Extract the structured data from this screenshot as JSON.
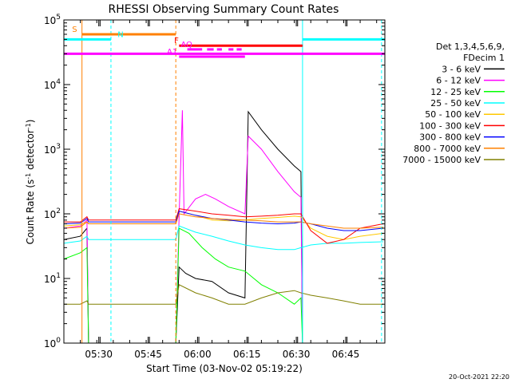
{
  "chart_data": {
    "type": "line",
    "title": "RHESSI Observing Summary Count Rates",
    "xlabel": "Start Time (03-Nov-02 05:19:22)",
    "ylabel": "Count Rate (s⁻¹ detector⁻¹)",
    "ylabel_main": "Count Rate (s",
    "ylabel_sup1": "-1",
    "ylabel_mid": " detector",
    "ylabel_sup2": "-1",
    "ylabel_end": ")",
    "x_ticks": [
      "05:30",
      "05:45",
      "06:00",
      "06:15",
      "06:30",
      "06:45"
    ],
    "x_tick_minutes": [
      10.6,
      25.6,
      40.6,
      55.6,
      70.6,
      85.6
    ],
    "xlim_minutes": [
      0,
      97.5
    ],
    "y_scale": "log",
    "ylim": [
      1,
      100000
    ],
    "y_ticks": [
      {
        "base": "10",
        "exp": "0"
      },
      {
        "base": "10",
        "exp": "1"
      },
      {
        "base": "10",
        "exp": "2"
      },
      {
        "base": "10",
        "exp": "3"
      },
      {
        "base": "10",
        "exp": "4"
      },
      {
        "base": "10",
        "exp": "5"
      }
    ],
    "legend_header": [
      "Det 1,3,4,5,6,9,",
      "FDecim 1"
    ],
    "series": [
      {
        "name": "3 - 6 keV",
        "color": "#000000",
        "values": [
          [
            0,
            40
          ],
          [
            5,
            45
          ],
          [
            7,
            60
          ],
          [
            7.5,
            1
          ],
          [
            34,
            1
          ],
          [
            35,
            15
          ],
          [
            37,
            12
          ],
          [
            40,
            10
          ],
          [
            45,
            9
          ],
          [
            50,
            6
          ],
          [
            55,
            5
          ],
          [
            56,
            3800
          ],
          [
            60,
            2000
          ],
          [
            65,
            1000
          ],
          [
            70,
            550
          ],
          [
            72,
            450
          ],
          [
            72.5,
            1
          ],
          [
            97,
            1
          ]
        ]
      },
      {
        "name": "6 - 12 keV",
        "color": "#ff00ff",
        "values": [
          [
            0,
            60
          ],
          [
            5,
            65
          ],
          [
            7,
            80
          ],
          [
            7.5,
            1
          ],
          [
            34,
            1
          ],
          [
            35,
            90
          ],
          [
            36,
            4000
          ],
          [
            36.5,
            100
          ],
          [
            40,
            170
          ],
          [
            43,
            200
          ],
          [
            46,
            170
          ],
          [
            50,
            130
          ],
          [
            55,
            100
          ],
          [
            56,
            1600
          ],
          [
            60,
            1000
          ],
          [
            65,
            450
          ],
          [
            70,
            220
          ],
          [
            72,
            180
          ],
          [
            72.5,
            1
          ],
          [
            97,
            1
          ]
        ]
      },
      {
        "name": "12 - 25 keV",
        "color": "#00ff00",
        "values": [
          [
            0,
            20
          ],
          [
            5,
            25
          ],
          [
            7,
            30
          ],
          [
            7.5,
            1
          ],
          [
            34,
            1
          ],
          [
            35,
            60
          ],
          [
            38,
            50
          ],
          [
            42,
            30
          ],
          [
            46,
            20
          ],
          [
            50,
            15
          ],
          [
            55,
            13
          ],
          [
            60,
            8
          ],
          [
            65,
            6
          ],
          [
            70,
            4
          ],
          [
            72,
            5
          ],
          [
            72.5,
            1
          ],
          [
            97,
            1
          ]
        ]
      },
      {
        "name": "25 - 50 keV",
        "color": "#00ffff",
        "values": [
          [
            0,
            35
          ],
          [
            5,
            38
          ],
          [
            7,
            45
          ],
          [
            7.5,
            40
          ],
          [
            34,
            40
          ],
          [
            35,
            65
          ],
          [
            40,
            52
          ],
          [
            45,
            45
          ],
          [
            50,
            38
          ],
          [
            55,
            33
          ],
          [
            60,
            30
          ],
          [
            65,
            28
          ],
          [
            70,
            28
          ],
          [
            72,
            30
          ],
          [
            75,
            33
          ],
          [
            80,
            35
          ],
          [
            85,
            35
          ],
          [
            90,
            36
          ],
          [
            97,
            37
          ]
        ]
      },
      {
        "name": "50 - 100 keV",
        "color": "#ffc800",
        "values": [
          [
            0,
            65
          ],
          [
            5,
            68
          ],
          [
            7,
            75
          ],
          [
            7.5,
            70
          ],
          [
            34,
            70
          ],
          [
            35,
            110
          ],
          [
            40,
            95
          ],
          [
            45,
            80
          ],
          [
            50,
            78
          ],
          [
            55,
            80
          ],
          [
            60,
            85
          ],
          [
            65,
            88
          ],
          [
            70,
            92
          ],
          [
            72,
            90
          ],
          [
            75,
            60
          ],
          [
            80,
            45
          ],
          [
            85,
            40
          ],
          [
            90,
            45
          ],
          [
            97,
            50
          ]
        ]
      },
      {
        "name": "100 - 300 keV",
        "color": "#ff0000",
        "values": [
          [
            0,
            75
          ],
          [
            5,
            75
          ],
          [
            7,
            90
          ],
          [
            7.5,
            80
          ],
          [
            34,
            80
          ],
          [
            35,
            120
          ],
          [
            40,
            110
          ],
          [
            45,
            100
          ],
          [
            50,
            95
          ],
          [
            55,
            90
          ],
          [
            60,
            92
          ],
          [
            65,
            95
          ],
          [
            70,
            100
          ],
          [
            72,
            100
          ],
          [
            75,
            55
          ],
          [
            80,
            35
          ],
          [
            85,
            40
          ],
          [
            90,
            60
          ],
          [
            97,
            70
          ]
        ]
      },
      {
        "name": "300 - 800 keV",
        "color": "#0000ff",
        "values": [
          [
            0,
            70
          ],
          [
            5,
            72
          ],
          [
            7,
            85
          ],
          [
            7.5,
            75
          ],
          [
            34,
            75
          ],
          [
            35,
            110
          ],
          [
            40,
            95
          ],
          [
            45,
            85
          ],
          [
            50,
            80
          ],
          [
            55,
            75
          ],
          [
            60,
            72
          ],
          [
            65,
            70
          ],
          [
            70,
            72
          ],
          [
            72,
            75
          ],
          [
            75,
            70
          ],
          [
            80,
            60
          ],
          [
            85,
            55
          ],
          [
            90,
            55
          ],
          [
            97,
            60
          ]
        ]
      },
      {
        "name": "800 - 7000 keV",
        "color": "#ff8000",
        "values": [
          [
            0,
            60
          ],
          [
            5,
            62
          ],
          [
            7,
            75
          ],
          [
            7.5,
            70
          ],
          [
            34,
            70
          ],
          [
            35,
            100
          ],
          [
            40,
            90
          ],
          [
            45,
            85
          ],
          [
            50,
            82
          ],
          [
            55,
            80
          ],
          [
            60,
            78
          ],
          [
            65,
            75
          ],
          [
            70,
            75
          ],
          [
            72,
            75
          ],
          [
            75,
            70
          ],
          [
            80,
            65
          ],
          [
            85,
            60
          ],
          [
            90,
            60
          ],
          [
            97,
            62
          ]
        ]
      },
      {
        "name": "7000 - 15000 keV",
        "color": "#808000",
        "values": [
          [
            0,
            4
          ],
          [
            5,
            4
          ],
          [
            7,
            4.5
          ],
          [
            7.5,
            4
          ],
          [
            34,
            4
          ],
          [
            35,
            8
          ],
          [
            40,
            6
          ],
          [
            45,
            5
          ],
          [
            50,
            4
          ],
          [
            55,
            4
          ],
          [
            60,
            5
          ],
          [
            65,
            6
          ],
          [
            70,
            6.5
          ],
          [
            72,
            6
          ],
          [
            75,
            5.5
          ],
          [
            80,
            5
          ],
          [
            85,
            4.5
          ],
          [
            90,
            4
          ],
          [
            97,
            4
          ]
        ]
      }
    ],
    "flags": {
      "S_label": "S",
      "S_color": "#ff8000",
      "S_range": [
        5.5,
        34
      ],
      "S_value": 60000,
      "N_label": "N",
      "N_color": "#00ffff",
      "N_ranges": [
        [
          0,
          14.3
        ],
        [
          72.5,
          97.5
        ]
      ],
      "N_value": 50000,
      "F_label": "F",
      "F_color": "#ff0000",
      "F_range": [
        35,
        72.5
      ],
      "F_value": 40000,
      "AQ_label": "AQ",
      "AQ_color": "#ff00ff",
      "AQ_segments": [
        [
          37.5,
          42
        ],
        [
          43.5,
          45.5
        ],
        [
          46.5,
          48
        ],
        [
          50,
          51.5
        ],
        [
          52.5,
          54
        ]
      ],
      "AQ_value": 35000,
      "A1_label": "A1",
      "A1_color": "#ff00ff",
      "A1_range": [
        0,
        97.5
      ],
      "A1_value": 30000,
      "A1_sub": [
        [
          35,
          55
        ]
      ],
      "A1_sub_value": 27000
    },
    "vlines": [
      {
        "t": 5.5,
        "color": "#ff8000",
        "style": "solid"
      },
      {
        "t": 14.3,
        "color": "#00ffff",
        "style": "dashed"
      },
      {
        "t": 34,
        "color": "#ff8000",
        "style": "dashed"
      },
      {
        "t": 72.5,
        "color": "#00ffff",
        "style": "solid"
      },
      {
        "t": 96.5,
        "color": "#00ffff",
        "style": "dashed"
      }
    ]
  },
  "footer_date": "20-Oct-2021 22:20"
}
